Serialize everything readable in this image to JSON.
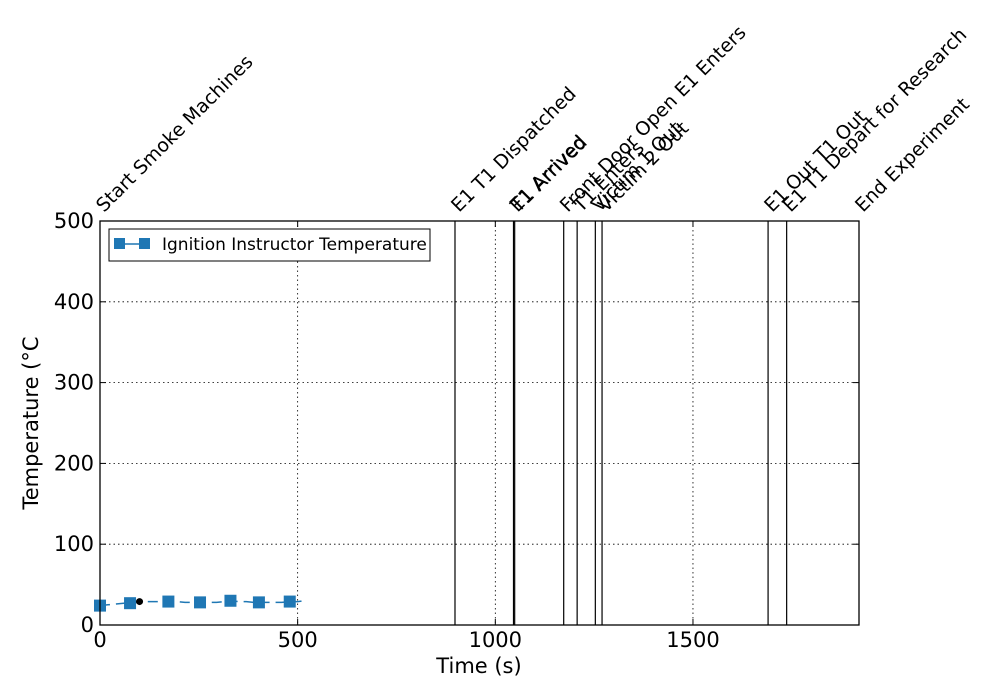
{
  "chart_data": {
    "type": "line",
    "xlabel": "Time (s)",
    "ylabel": "Temperature (°C",
    "xlim": [
      0,
      1920
    ],
    "ylim": [
      0,
      500
    ],
    "x_ticks": [
      0,
      500,
      1000,
      1500
    ],
    "y_ticks": [
      0,
      100,
      200,
      300,
      400,
      500
    ],
    "grid": true,
    "legend_placement": "top-left",
    "series": [
      {
        "name": "Ignition Instructor Temperature",
        "color": "#1f77b4",
        "marker": "square",
        "x": [
          0,
          20,
          40,
          60,
          76,
          95,
          115,
          135,
          155,
          173,
          195,
          215,
          235,
          253,
          275,
          295,
          315,
          330,
          350,
          370,
          390,
          402,
          420,
          440,
          460,
          480,
          500,
          515
        ],
        "y": [
          24,
          25,
          26,
          27,
          27,
          28,
          29,
          29,
          29,
          29,
          29,
          28,
          28,
          28,
          28,
          28,
          29,
          30,
          29,
          29,
          28,
          28,
          28,
          28,
          28,
          29,
          29,
          30
        ],
        "marker_x": [
          0,
          76,
          173,
          253,
          330,
          402,
          480
        ]
      }
    ],
    "annotation_points": [
      {
        "x": 100,
        "y": 29,
        "color": "#000000"
      }
    ],
    "events": [
      {
        "label": "Start Smoke Machines",
        "x": 0
      },
      {
        "label": "E1 T1 Dispatched",
        "x": 898
      },
      {
        "label": "E1 Arrived",
        "x": 1046
      },
      {
        "label": "T1 Arrived",
        "x": 1049
      },
      {
        "label": "Front Door Open E1 Enters",
        "x": 1173
      },
      {
        "label": "T1 Enters",
        "x": 1207
      },
      {
        "label": "Victim 1 Out",
        "x": 1253
      },
      {
        "label": "Victim 2 Out",
        "x": 1270
      },
      {
        "label": "E1 Out T1 Out",
        "x": 1690
      },
      {
        "label": "E1 T1 Depart for Research",
        "x": 1737
      },
      {
        "label": "End Experiment",
        "x": 1920
      }
    ]
  }
}
